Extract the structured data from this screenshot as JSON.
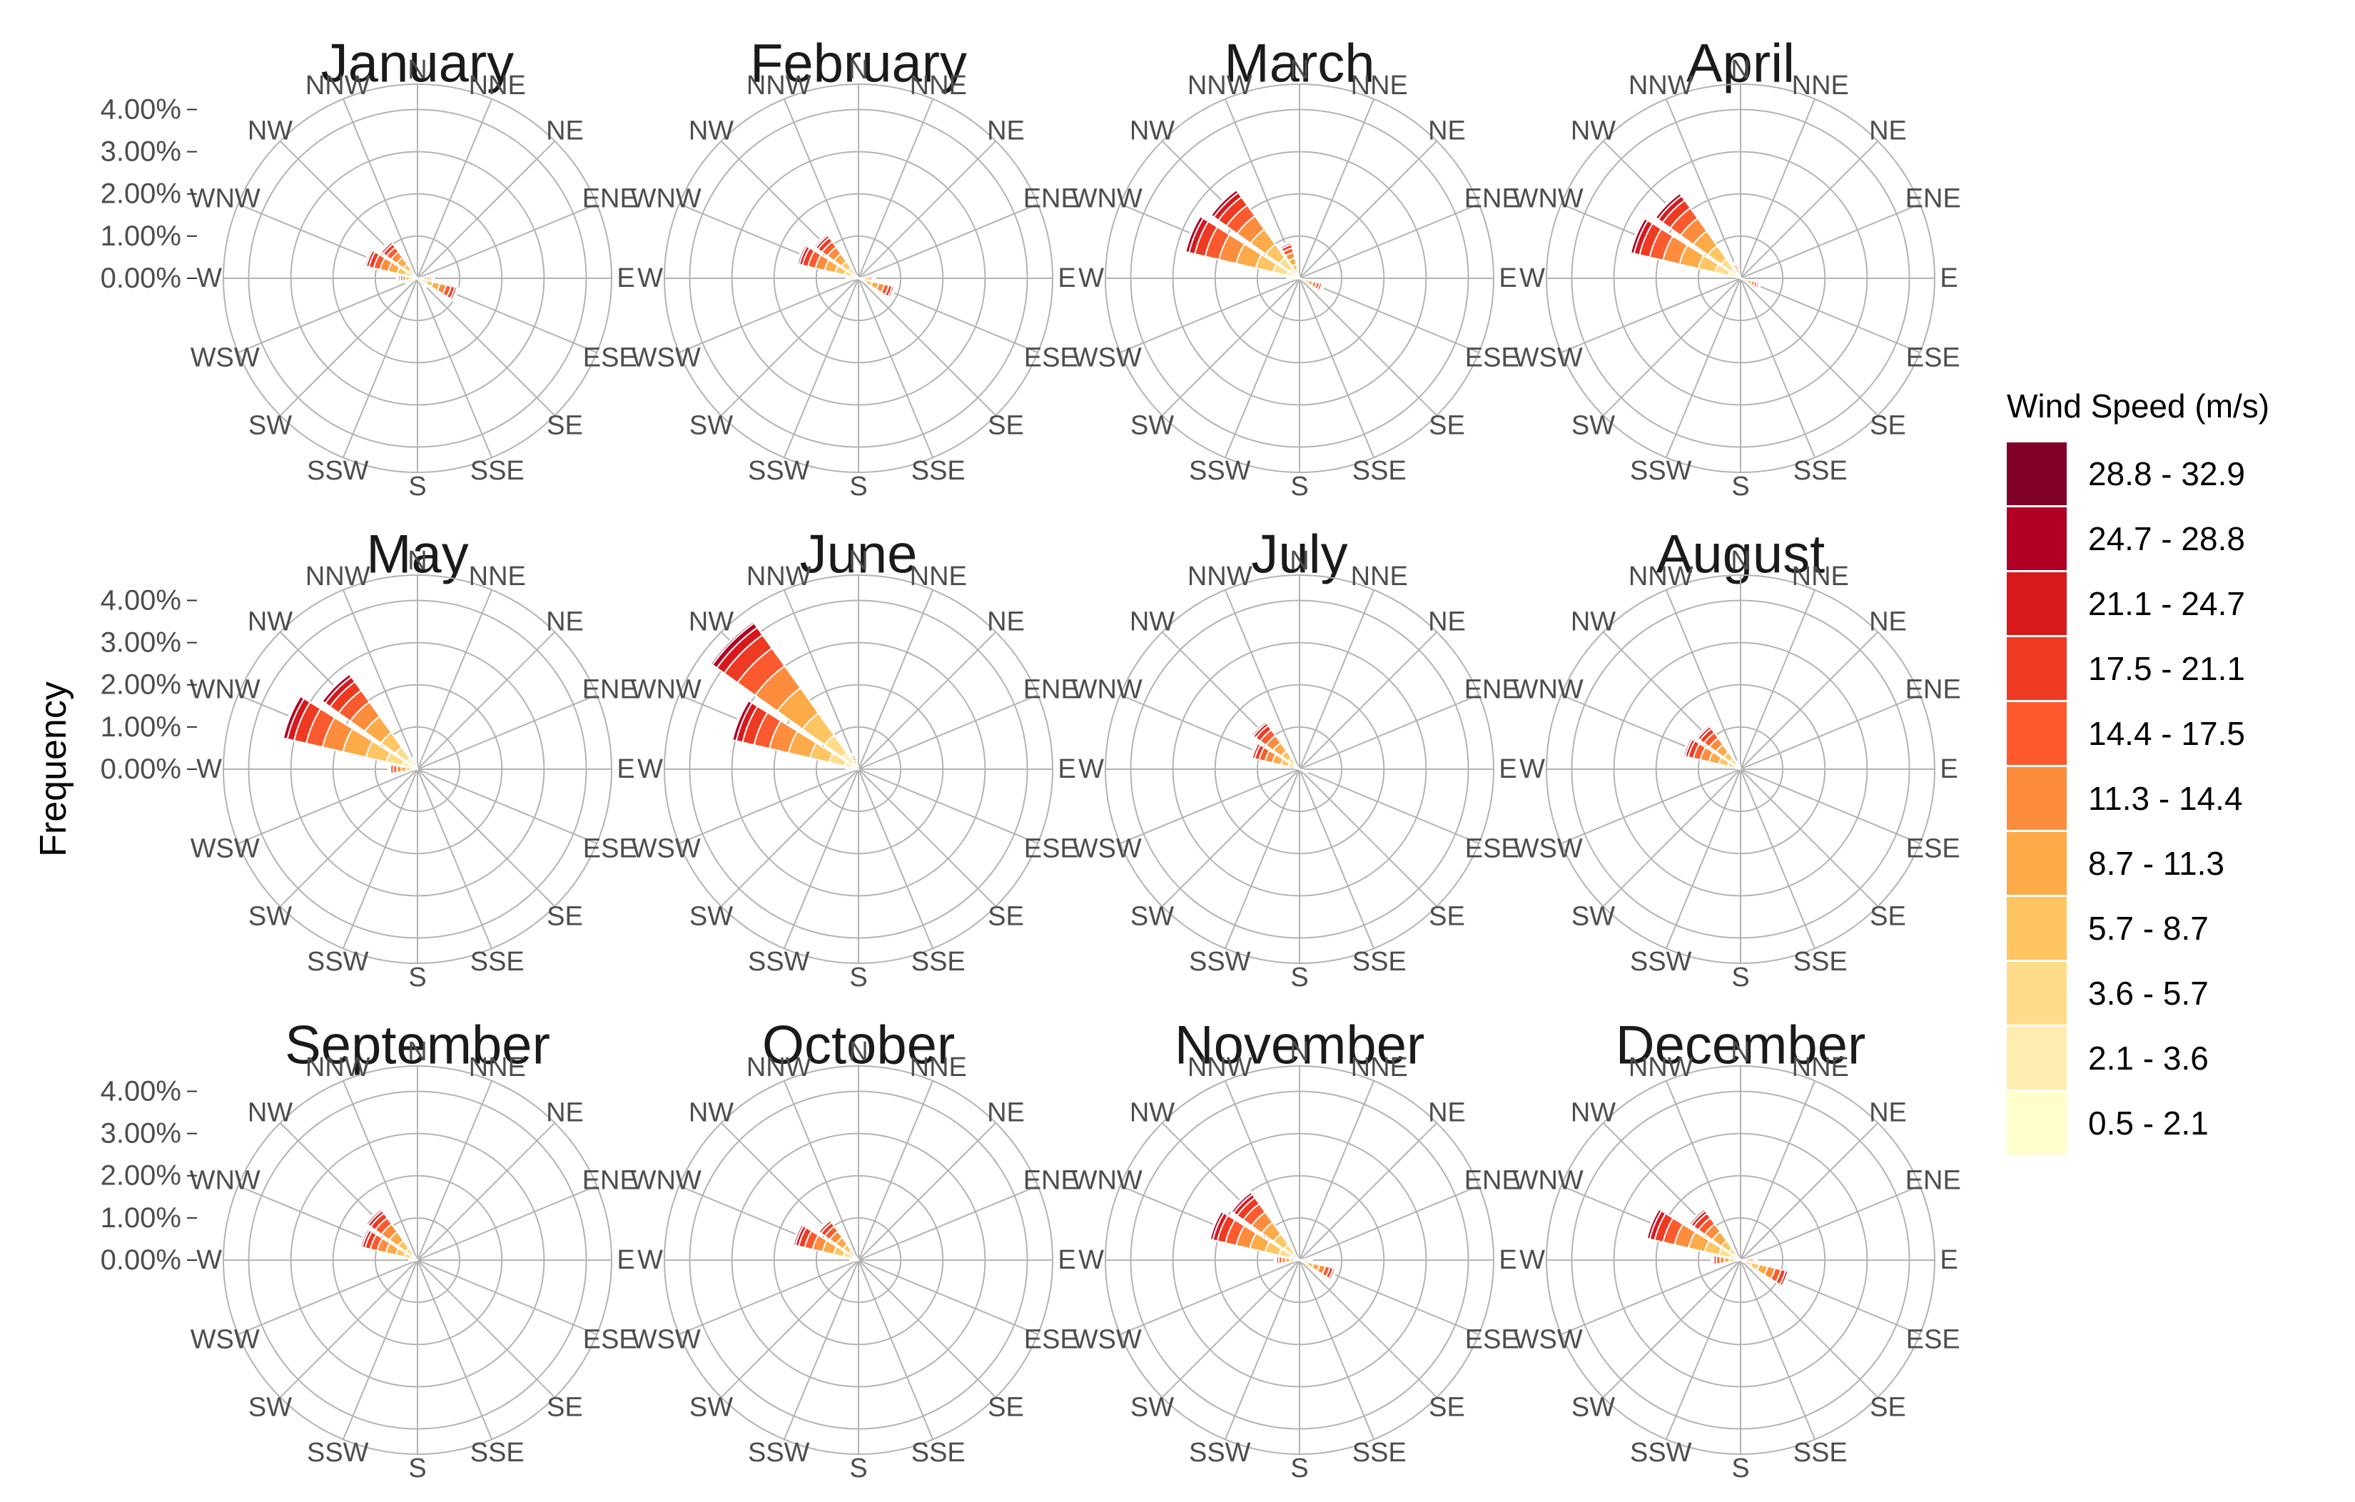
{
  "chart_data": {
    "type": "windrose",
    "ylabel": "Frequency",
    "y_ticks": [
      "0.00%",
      "1.00%",
      "2.00%",
      "3.00%",
      "4.00%"
    ],
    "y_tick_values": [
      0,
      1,
      2,
      3,
      4
    ],
    "rlim": [
      0,
      4.6
    ],
    "grid": true,
    "legend_position": "right",
    "directions": [
      "N",
      "NNE",
      "NE",
      "ENE",
      "E",
      "ESE",
      "SE",
      "SSE",
      "S",
      "SSW",
      "SW",
      "WSW",
      "W",
      "WNW",
      "NW",
      "NNW"
    ],
    "legend": {
      "title": "Wind Speed (m/s)",
      "bins": [
        {
          "label": "28.8 - 32.9",
          "color": "#800026"
        },
        {
          "label": "24.7 - 28.8",
          "color": "#B10026"
        },
        {
          "label": "21.1 - 24.7",
          "color": "#D7191C"
        },
        {
          "label": "17.5 - 21.1",
          "color": "#EE3A22"
        },
        {
          "label": "14.4 - 17.5",
          "color": "#FC5A2E"
        },
        {
          "label": "11.3 - 14.4",
          "color": "#FD8D3C"
        },
        {
          "label": "8.7 - 11.3",
          "color": "#FDAA48"
        },
        {
          "label": "5.7 - 8.7",
          "color": "#FEC562"
        },
        {
          "label": "3.6 - 5.7",
          "color": "#FEDC8A"
        },
        {
          "label": "2.1 - 3.6",
          "color": "#FFEDB0"
        },
        {
          "label": "0.5 - 2.1",
          "color": "#FFFFCC"
        }
      ]
    },
    "panels": [
      {
        "title": "January",
        "totals": {
          "W": 0.5,
          "WNW": 1.3,
          "NW": 1.1,
          "ESE": 1.0,
          "E": 0.4,
          "SE": 0.3,
          "WSW": 0.3
        }
      },
      {
        "title": "February",
        "totals": {
          "WNW": 1.5,
          "NW": 1.3,
          "W": 0.3,
          "ESE": 0.9,
          "E": 0.4
        }
      },
      {
        "title": "March",
        "totals": {
          "WNW": 2.8,
          "NW": 2.6,
          "NNW": 0.9,
          "W": 0.3,
          "ESE": 0.6
        }
      },
      {
        "title": "April",
        "totals": {
          "WNW": 2.7,
          "NW": 2.5,
          "NNW": 0.4,
          "ESE": 0.5
        }
      },
      {
        "title": "May",
        "totals": {
          "WNW": 3.3,
          "NW": 2.8,
          "W": 0.7,
          "NNW": 0.3
        }
      },
      {
        "title": "June",
        "totals": {
          "WNW": 3.1,
          "NW": 4.3,
          "NNW": 0.4,
          "W": 0.3
        }
      },
      {
        "title": "July",
        "totals": {
          "WNW": 1.2,
          "NW": 1.4,
          "ESE": 0.2
        }
      },
      {
        "title": "August",
        "totals": {
          "WNW": 1.4,
          "NW": 1.3,
          "NNW": 0.2
        }
      },
      {
        "title": "September",
        "totals": {
          "WNW": 1.4,
          "NW": 1.5,
          "W": 0.2
        }
      },
      {
        "title": "October",
        "totals": {
          "WNW": 1.6,
          "NW": 1.2,
          "W": 0.2
        }
      },
      {
        "title": "November",
        "totals": {
          "WNW": 2.2,
          "NW": 2.0,
          "W": 0.6,
          "ESE": 0.9,
          "E": 0.3
        }
      },
      {
        "title": "December",
        "totals": {
          "WNW": 2.3,
          "NW": 1.5,
          "W": 0.7,
          "ESE": 1.2,
          "E": 0.4
        }
      }
    ]
  }
}
